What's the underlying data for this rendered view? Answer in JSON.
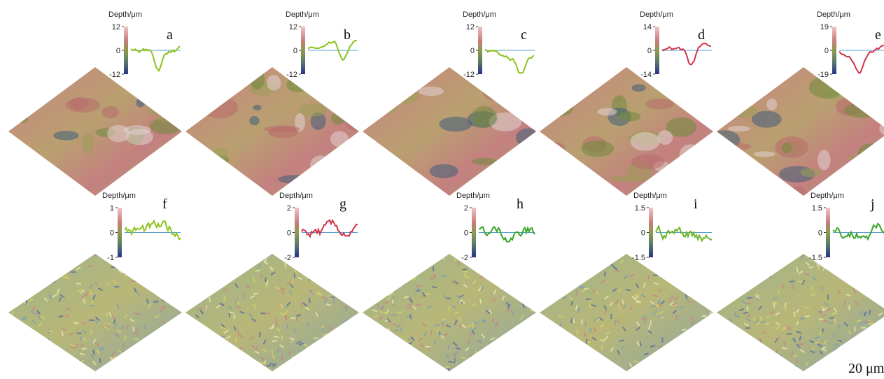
{
  "panels": [
    {
      "label": "a",
      "colorbar_title": "Depth/μm",
      "colorbar_ticks": [
        12,
        0,
        -12
      ],
      "profile_color": "#8cc21a"
    },
    {
      "label": "b",
      "colorbar_title": "Depth/μm",
      "colorbar_ticks": [
        12,
        0,
        -12
      ],
      "profile_color": "#8cc21a"
    },
    {
      "label": "c",
      "colorbar_title": "Depth/μm",
      "colorbar_ticks": [
        12,
        0,
        -12
      ],
      "profile_color": "#8cc21a"
    },
    {
      "label": "d",
      "colorbar_title": "Depth/μm",
      "colorbar_ticks": [
        14,
        0,
        -14
      ],
      "profile_color": "#d0344a"
    },
    {
      "label": "e",
      "colorbar_title": "Depth/μm",
      "colorbar_ticks": [
        19,
        0,
        -19
      ],
      "profile_color": "#d0344a"
    },
    {
      "label": "f",
      "colorbar_title": "Depth/μm",
      "colorbar_ticks": [
        1,
        0,
        -1
      ],
      "profile_color": "#8cc21a"
    },
    {
      "label": "g",
      "colorbar_title": "Depth/μm",
      "colorbar_ticks": [
        2,
        0,
        -2
      ],
      "profile_color": "#d0344a"
    },
    {
      "label": "h",
      "colorbar_title": "Depth/μm",
      "colorbar_ticks": [
        2,
        0,
        -2
      ],
      "profile_color": "#3aa52a"
    },
    {
      "label": "i",
      "colorbar_title": "Depth/μm",
      "colorbar_ticks": [
        1.5,
        0,
        -1.5
      ],
      "profile_color": "#6cb52a"
    },
    {
      "label": "j",
      "colorbar_title": "Depth/μm",
      "colorbar_ticks": [
        1.5,
        0,
        -1.5
      ],
      "profile_color": "#3aa52a"
    }
  ],
  "scale_bar": "20 μm"
}
